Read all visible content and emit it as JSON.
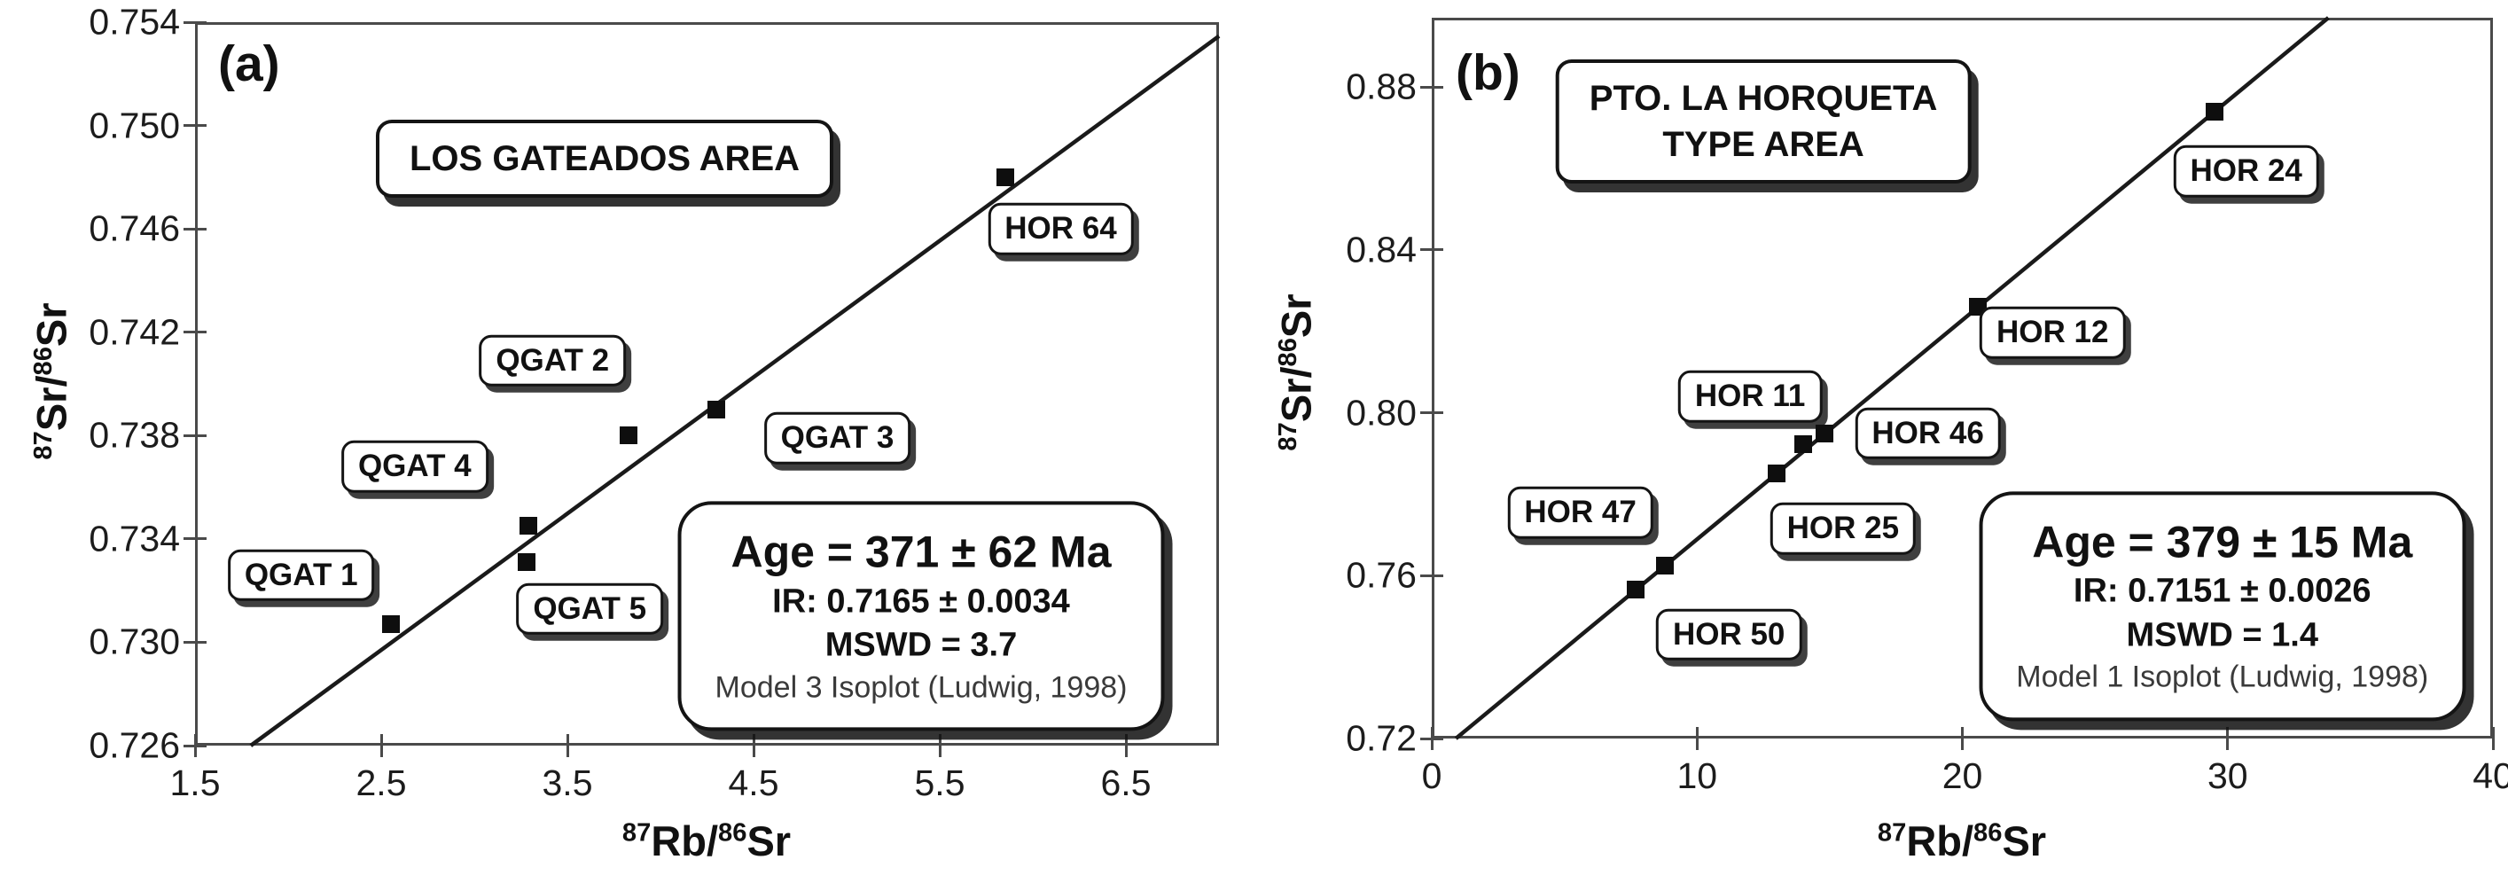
{
  "figure": {
    "axis_x": {
      "sup1": "87",
      "t1": "Rb/",
      "sup2": "86",
      "t2": "Sr"
    },
    "axis_y": {
      "sup1": "87",
      "t1": "Sr/",
      "sup2": "86",
      "t2": "Sr"
    }
  },
  "colors": {
    "background": "#ffffff",
    "plot_border": "#4a4a4a",
    "isochron_line": "#1a1a1a",
    "point": "#0e0e0e",
    "box_border": "#141414",
    "text": "#111111",
    "muted_text": "#3a3a3a"
  },
  "chart_data": [
    {
      "type": "scatter",
      "panel_letter": "(a)",
      "title_lines": [
        "LOS GATEADOS AREA"
      ],
      "xlabel": "87Rb/86Sr",
      "ylabel": "87Sr/86Sr",
      "xlim": [
        1.5,
        7.0
      ],
      "ylim": [
        0.726,
        0.754
      ],
      "xticks": [
        1.5,
        2.5,
        3.5,
        4.5,
        5.5,
        6.5
      ],
      "xtick_labels": [
        "1.5",
        "2.5",
        "3.5",
        "4.5",
        "5.5",
        "6.5"
      ],
      "yticks": [
        0.726,
        0.73,
        0.734,
        0.738,
        0.742,
        0.746,
        0.75,
        0.754
      ],
      "ytick_labels": [
        "0.726",
        "0.730",
        "0.734",
        "0.738",
        "0.742",
        "0.746",
        "0.750",
        "0.754"
      ],
      "grid": false,
      "legend": "none",
      "isochron_line": {
        "intercept": 0.7165,
        "slope": 0.00528
      },
      "points": [
        {
          "label": "QGAT 1",
          "x": 2.55,
          "y": 0.7307,
          "label_at": [
            2.07,
            0.7326
          ]
        },
        {
          "label": "QGAT 4",
          "x": 3.29,
          "y": 0.7345,
          "label_at": [
            2.68,
            0.7368
          ]
        },
        {
          "label": "QGAT 5",
          "x": 3.28,
          "y": 0.7331,
          "label_at": [
            3.62,
            0.7313
          ]
        },
        {
          "label": "QGAT 2",
          "x": 3.83,
          "y": 0.738,
          "label_at": [
            3.42,
            0.7409
          ]
        },
        {
          "label": "QGAT 3",
          "x": 4.3,
          "y": 0.739,
          "label_at": [
            4.95,
            0.7379
          ]
        },
        {
          "label": "HOR 64",
          "x": 5.85,
          "y": 0.748,
          "label_at": [
            6.15,
            0.746
          ]
        }
      ],
      "title_at": [
        3.7,
        0.7487
      ],
      "results": {
        "age": "Age = 371 ± 62 Ma",
        "ir": "IR: 0.7165 ± 0.0034",
        "mswd": "MSWD = 3.7",
        "model": "Model 3 Isoplot (Ludwig, 1998)",
        "at": [
          5.4,
          0.731
        ]
      }
    },
    {
      "type": "scatter",
      "panel_letter": "(b)",
      "title_lines": [
        "PTO. LA HORQUETA",
        "TYPE AREA"
      ],
      "xlabel": "87Rb/86Sr",
      "ylabel": "87Sr/86Sr",
      "xlim": [
        0,
        40
      ],
      "ylim": [
        0.72,
        0.897
      ],
      "xticks": [
        0,
        10,
        20,
        30,
        40
      ],
      "xtick_labels": [
        "0",
        "10",
        "20",
        "30",
        "40"
      ],
      "yticks": [
        0.72,
        0.76,
        0.8,
        0.84,
        0.88
      ],
      "ytick_labels": [
        "0.72",
        "0.76",
        "0.80",
        "0.84",
        "0.88"
      ],
      "grid": false,
      "legend": "none",
      "isochron_line": {
        "intercept": 0.7151,
        "slope": 0.005382
      },
      "points": [
        {
          "label": "HOR 47",
          "x": 7.7,
          "y": 0.7565,
          "label_at": [
            5.6,
            0.7755
          ]
        },
        {
          "label": "HOR 50",
          "x": 8.8,
          "y": 0.7624,
          "label_at": [
            11.2,
            0.7455
          ]
        },
        {
          "label": "HOR 25",
          "x": 13.0,
          "y": 0.7851,
          "label_at": [
            15.5,
            0.7715
          ]
        },
        {
          "label": "HOR 11",
          "x": 14.0,
          "y": 0.7922,
          "label_at": [
            12.0,
            0.804
          ]
        },
        {
          "label": "HOR 46",
          "x": 14.8,
          "y": 0.7948,
          "label_at": [
            18.7,
            0.795
          ]
        },
        {
          "label": "HOR 12",
          "x": 20.6,
          "y": 0.826,
          "label_at": [
            23.4,
            0.8197
          ]
        },
        {
          "label": "HOR 24",
          "x": 29.5,
          "y": 0.8739,
          "label_at": [
            30.7,
            0.8593
          ]
        }
      ],
      "title_at": [
        12.5,
        0.8715
      ],
      "results": {
        "age": "Age = 379 ± 15 Ma",
        "ir": "IR: 0.7151 ± 0.0026",
        "mswd": "MSWD = 1.4",
        "model": "Model 1 Isoplot (Ludwig, 1998)",
        "at": [
          29.8,
          0.7525
        ]
      }
    }
  ]
}
